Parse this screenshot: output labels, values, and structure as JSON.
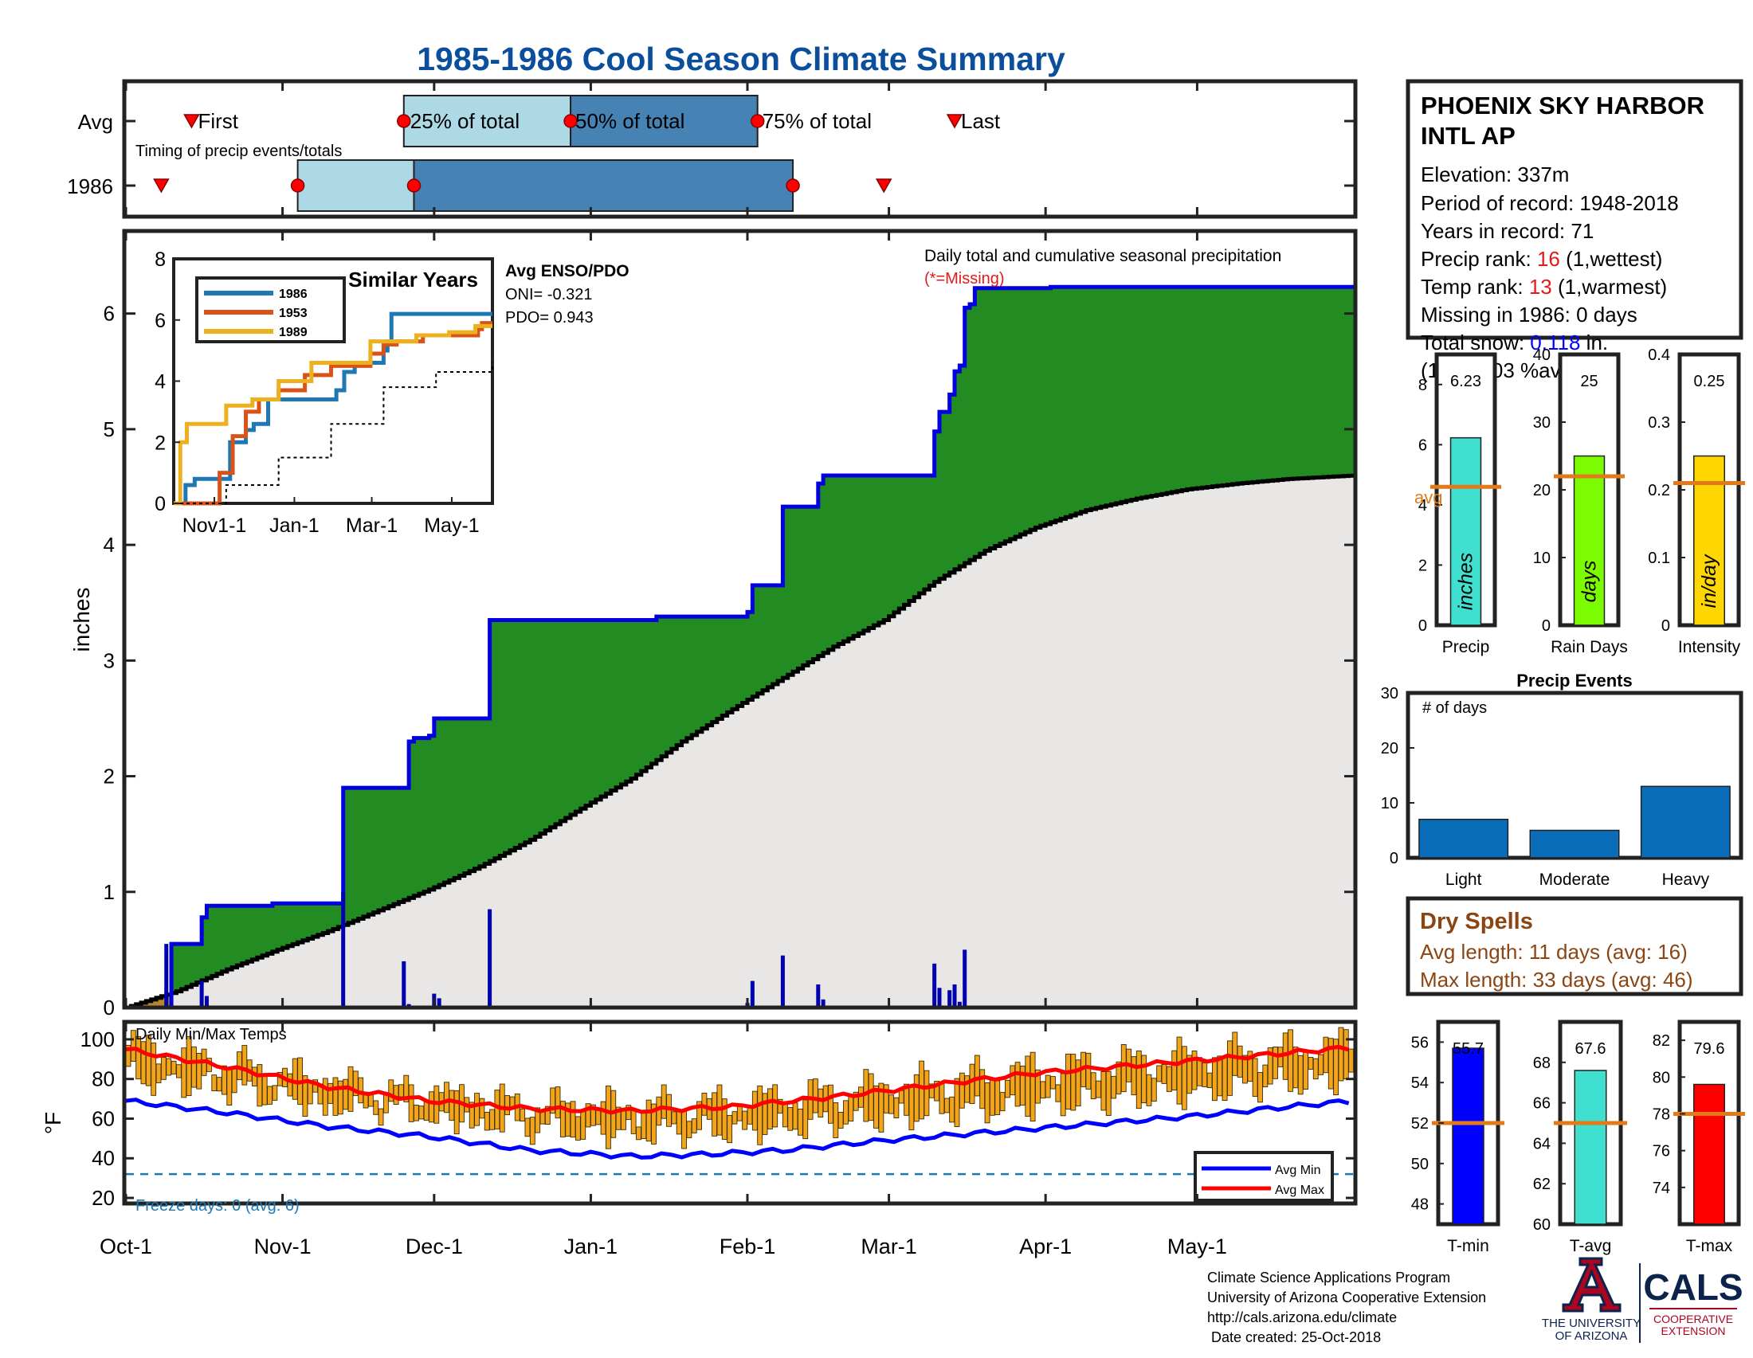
{
  "title": "1985-1986 Cool Season Climate Summary",
  "colors": {
    "title": "#0b4f9c",
    "precip_fill": "#228b22",
    "avg_fill": "#e8e7e6",
    "precip_line": "#0000e0",
    "bars_daily": "#0000b0",
    "timing_light": "#add8e6",
    "timing_dark": "#4682b4",
    "event_marker": "#ff0000",
    "temp_bar": "#f2a51a",
    "avg_min": "#0000ff",
    "avg_max": "#ff0000",
    "freeze": "#1f77b4",
    "dry_text": "#8b4513",
    "ua_red": "#ab0520",
    "ua_blue": "#0c234b"
  },
  "timing": {
    "rows": [
      "Avg",
      "1986"
    ],
    "caption": "Timing of precip events/totals",
    "labels": {
      "first": "First",
      "p25": "25% of total",
      "p50": "50% of total",
      "p75": "75% of total",
      "last": "Last"
    },
    "avg_days": {
      "first": 13,
      "p25": 55,
      "p50": 88,
      "p75": 125,
      "last": 164
    },
    "y1986_days": {
      "first": 7,
      "p25": 34,
      "p50": 57,
      "p75": 132,
      "last": 150
    }
  },
  "months": [
    "Oct-1",
    "Nov-1",
    "Dec-1",
    "Jan-1",
    "Feb-1",
    "Mar-1",
    "Apr-1",
    "May-1"
  ],
  "month_days": [
    0,
    31,
    61,
    92,
    123,
    151,
    182,
    212
  ],
  "season_days": 243,
  "main": {
    "ylabel": "inches",
    "yticks": [
      0,
      1,
      2,
      3,
      4,
      5,
      6
    ],
    "ylim": [
      0,
      6.7
    ],
    "caption": "Daily total and cumulative seasonal precipitation",
    "missing_note": "(*=Missing)",
    "enso": {
      "title": "Avg ENSO/PDO",
      "oni": "ONI= -0.321",
      "pdo": "PDO= 0.943"
    }
  },
  "chart_data": [
    {
      "type": "area",
      "title": "Daily total and cumulative seasonal precipitation",
      "ylabel": "inches",
      "ylim": [
        0,
        6.7
      ],
      "x_unit": "day of season starting Oct-1",
      "cumulative_1986": [
        [
          0,
          0.0
        ],
        [
          8,
          0.0
        ],
        [
          9,
          0.55
        ],
        [
          14,
          0.55
        ],
        [
          15,
          0.78
        ],
        [
          16,
          0.88
        ],
        [
          29,
          0.9
        ],
        [
          42,
          0.9
        ],
        [
          43,
          1.9
        ],
        [
          55,
          1.9
        ],
        [
          56,
          2.3
        ],
        [
          57,
          2.33
        ],
        [
          60,
          2.35
        ],
        [
          61,
          2.5
        ],
        [
          71,
          2.5
        ],
        [
          72,
          3.35
        ],
        [
          105,
          3.38
        ],
        [
          122,
          3.38
        ],
        [
          123,
          3.42
        ],
        [
          124,
          3.65
        ],
        [
          129,
          3.65
        ],
        [
          130,
          4.33
        ],
        [
          135,
          4.33
        ],
        [
          137,
          4.53
        ],
        [
          138,
          4.6
        ],
        [
          159,
          4.6
        ],
        [
          160,
          4.98
        ],
        [
          161,
          5.15
        ],
        [
          162,
          5.15
        ],
        [
          163,
          5.3
        ],
        [
          164,
          5.5
        ],
        [
          165,
          5.55
        ],
        [
          166,
          6.05
        ],
        [
          167,
          6.08
        ],
        [
          168,
          6.22
        ],
        [
          183,
          6.23
        ],
        [
          243,
          6.23
        ]
      ],
      "cumulative_avg": [
        [
          0,
          0.0
        ],
        [
          10,
          0.14
        ],
        [
          20,
          0.33
        ],
        [
          30,
          0.5
        ],
        [
          40,
          0.66
        ],
        [
          50,
          0.84
        ],
        [
          60,
          1.02
        ],
        [
          70,
          1.22
        ],
        [
          80,
          1.45
        ],
        [
          90,
          1.72
        ],
        [
          100,
          1.98
        ],
        [
          110,
          2.3
        ],
        [
          120,
          2.58
        ],
        [
          130,
          2.85
        ],
        [
          140,
          3.12
        ],
        [
          150,
          3.35
        ],
        [
          160,
          3.68
        ],
        [
          170,
          3.95
        ],
        [
          180,
          4.15
        ],
        [
          190,
          4.3
        ],
        [
          200,
          4.4
        ],
        [
          210,
          4.48
        ],
        [
          220,
          4.53
        ],
        [
          230,
          4.57
        ],
        [
          243,
          4.6
        ]
      ],
      "daily_1986": [
        [
          8,
          0.55
        ],
        [
          15,
          0.23
        ],
        [
          16,
          0.1
        ],
        [
          43,
          1.0
        ],
        [
          55,
          0.4
        ],
        [
          56,
          0.03
        ],
        [
          61,
          0.12
        ],
        [
          62,
          0.08
        ],
        [
          72,
          0.85
        ],
        [
          123,
          0.04
        ],
        [
          124,
          0.23
        ],
        [
          130,
          0.45
        ],
        [
          137,
          0.2
        ],
        [
          138,
          0.07
        ],
        [
          160,
          0.38
        ],
        [
          161,
          0.17
        ],
        [
          163,
          0.15
        ],
        [
          164,
          0.2
        ],
        [
          165,
          0.05
        ],
        [
          166,
          0.5
        ]
      ]
    },
    {
      "type": "line",
      "title": "Similar Years",
      "ylim": [
        0,
        8
      ],
      "yticks": [
        0,
        2,
        4,
        6,
        8
      ],
      "xticks": [
        "Nov1-1",
        "Jan-1",
        "Mar-1",
        "May-1"
      ],
      "xtick_days": [
        31,
        92,
        151,
        212
      ],
      "series": [
        {
          "name": "1986",
          "color": "#1f77b4",
          "points": [
            [
              0,
              0
            ],
            [
              9,
              0.6
            ],
            [
              16,
              0.8
            ],
            [
              29,
              0.8
            ],
            [
              43,
              2.0
            ],
            [
              55,
              2.4
            ],
            [
              61,
              2.6
            ],
            [
              72,
              3.4
            ],
            [
              110,
              3.4
            ],
            [
              124,
              3.7
            ],
            [
              130,
              4.3
            ],
            [
              138,
              4.6
            ],
            [
              160,
              5.0
            ],
            [
              163,
              5.3
            ],
            [
              166,
              6.2
            ],
            [
              243,
              6.2
            ]
          ]
        },
        {
          "name": "1953",
          "color": "#d95319",
          "points": [
            [
              0,
              0
            ],
            [
              30,
              0
            ],
            [
              35,
              1.0
            ],
            [
              45,
              2.2
            ],
            [
              55,
              3.0
            ],
            [
              65,
              3.4
            ],
            [
              80,
              3.7
            ],
            [
              100,
              4.2
            ],
            [
              120,
              4.5
            ],
            [
              145,
              4.5
            ],
            [
              150,
              4.9
            ],
            [
              160,
              5.2
            ],
            [
              170,
              5.3
            ],
            [
              190,
              5.5
            ],
            [
              232,
              5.7
            ],
            [
              235,
              5.9
            ],
            [
              243,
              5.9
            ]
          ]
        },
        {
          "name": "1989",
          "color": "#edb120",
          "points": [
            [
              0,
              0
            ],
            [
              5,
              2.0
            ],
            [
              10,
              2.6
            ],
            [
              38,
              2.6
            ],
            [
              40,
              3.2
            ],
            [
              60,
              3.4
            ],
            [
              80,
              4.0
            ],
            [
              100,
              4.0
            ],
            [
              105,
              4.6
            ],
            [
              120,
              4.6
            ],
            [
              150,
              5.3
            ],
            [
              180,
              5.3
            ],
            [
              185,
              5.5
            ],
            [
              210,
              5.6
            ],
            [
              230,
              5.8
            ],
            [
              243,
              5.8
            ]
          ]
        },
        {
          "name": "avg",
          "color": "#000000",
          "points": [
            [
              0,
              0
            ],
            [
              40,
              0.6
            ],
            [
              80,
              1.5
            ],
            [
              120,
              2.6
            ],
            [
              160,
              3.8
            ],
            [
              200,
              4.3
            ],
            [
              243,
              4.6
            ]
          ]
        }
      ]
    },
    {
      "type": "bar",
      "title": "Season totals",
      "categories": [
        "Precip",
        "Rain Days",
        "Intensity"
      ],
      "values": [
        6.23,
        25,
        0.25
      ],
      "averages": [
        4.6,
        22,
        0.21
      ],
      "inner_labels": [
        "inches",
        "days",
        "in/day"
      ],
      "ylims": [
        [
          0,
          9
        ],
        [
          0,
          40
        ],
        [
          0,
          0.4
        ]
      ],
      "yticks": [
        [
          0,
          2,
          4,
          6,
          8
        ],
        [
          0,
          10,
          20,
          30,
          40
        ],
        [
          0,
          0.1,
          0.2,
          0.3,
          0.4
        ]
      ],
      "bar_colors": [
        "#40e0d0",
        "#7cfc00",
        "#ffd700"
      ],
      "value_labels": [
        "6.23",
        "25",
        "0.25"
      ],
      "avg_label": "avg"
    },
    {
      "type": "bar",
      "title": "Precip Events",
      "ylabel": "# of days",
      "categories": [
        "Light",
        "Moderate",
        "Heavy"
      ],
      "values": [
        7,
        5,
        13
      ],
      "ylim": [
        0,
        30
      ],
      "yticks": [
        0,
        10,
        20,
        30
      ]
    },
    {
      "type": "line",
      "title": "Daily Min/Max Temps",
      "ylabel": "°F",
      "ylim": [
        18,
        108
      ],
      "yticks": [
        20,
        40,
        60,
        80,
        100
      ],
      "avg_min_points": [
        [
          0,
          69
        ],
        [
          20,
          63
        ],
        [
          40,
          56
        ],
        [
          60,
          51
        ],
        [
          80,
          44
        ],
        [
          100,
          41
        ],
        [
          115,
          42
        ],
        [
          130,
          44
        ],
        [
          150,
          49
        ],
        [
          170,
          53
        ],
        [
          190,
          57
        ],
        [
          210,
          61
        ],
        [
          230,
          66
        ],
        [
          243,
          69
        ]
      ],
      "avg_max_points": [
        [
          0,
          95
        ],
        [
          20,
          86
        ],
        [
          40,
          76
        ],
        [
          60,
          69
        ],
        [
          80,
          65
        ],
        [
          100,
          64
        ],
        [
          120,
          66
        ],
        [
          140,
          71
        ],
        [
          160,
          77
        ],
        [
          180,
          83
        ],
        [
          200,
          87
        ],
        [
          220,
          91
        ],
        [
          243,
          96
        ]
      ],
      "freeze_line": 32,
      "freeze_label": "Freeze days: 0 (avg. 6)",
      "legend": [
        "Avg Min",
        "Avg Max"
      ]
    },
    {
      "type": "bar",
      "title": "Season temperatures",
      "categories": [
        "T-min",
        "T-avg",
        "T-max"
      ],
      "values": [
        55.7,
        67.6,
        79.6
      ],
      "averages": [
        52,
        65,
        78
      ],
      "value_labels": [
        "55.7",
        "67.6",
        "79.6"
      ],
      "ylims": [
        [
          47,
          57
        ],
        [
          60,
          70
        ],
        [
          72,
          83
        ]
      ],
      "yticks": [
        [
          48,
          50,
          52,
          54,
          56
        ],
        [
          60,
          62,
          64,
          66,
          68
        ],
        [
          74,
          76,
          78,
          80,
          82
        ]
      ],
      "bar_colors": [
        "#0000ff",
        "#40e0d0",
        "#ff0000"
      ]
    }
  ],
  "station": {
    "name_line1": "PHOENIX SKY HARBOR",
    "name_line2": "INTL AP",
    "elevation": "Elevation: 337m",
    "period": "Period of record: 1948-2018",
    "years": "Years in record: 71",
    "precip_rank_label": "Precip rank: ",
    "precip_rank_value": "16",
    "precip_rank_note": " (1,wettest)",
    "temp_rank_label": "Temp rank: ",
    "temp_rank_value": "13",
    "temp_rank_note": " (1,warmest)",
    "missing": "Missing in 1986: 0 days",
    "snow_label": "Total snow: ",
    "snow_value": "0.118",
    "snow_unit": " in.",
    "snow_pct": "(1.64e+03 %avg)"
  },
  "dry_spells": {
    "title": "Dry Spells",
    "avg_length": "Avg length: 11 days (avg: 16)",
    "max_length": "Max length: 33 days (avg: 46)"
  },
  "footer": {
    "line1": "Climate Science Applications Program",
    "line2": "University of Arizona Cooperative Extension",
    "line3": "http://cals.arizona.edu/climate",
    "line4": " Date created: 25-Oct-2018",
    "ua_line1": "THE UNIVERSITY",
    "ua_line2": "OF ARIZONA",
    "cals": "CALS",
    "cals_sub1": "COOPERATIVE",
    "cals_sub2": "EXTENSION"
  }
}
